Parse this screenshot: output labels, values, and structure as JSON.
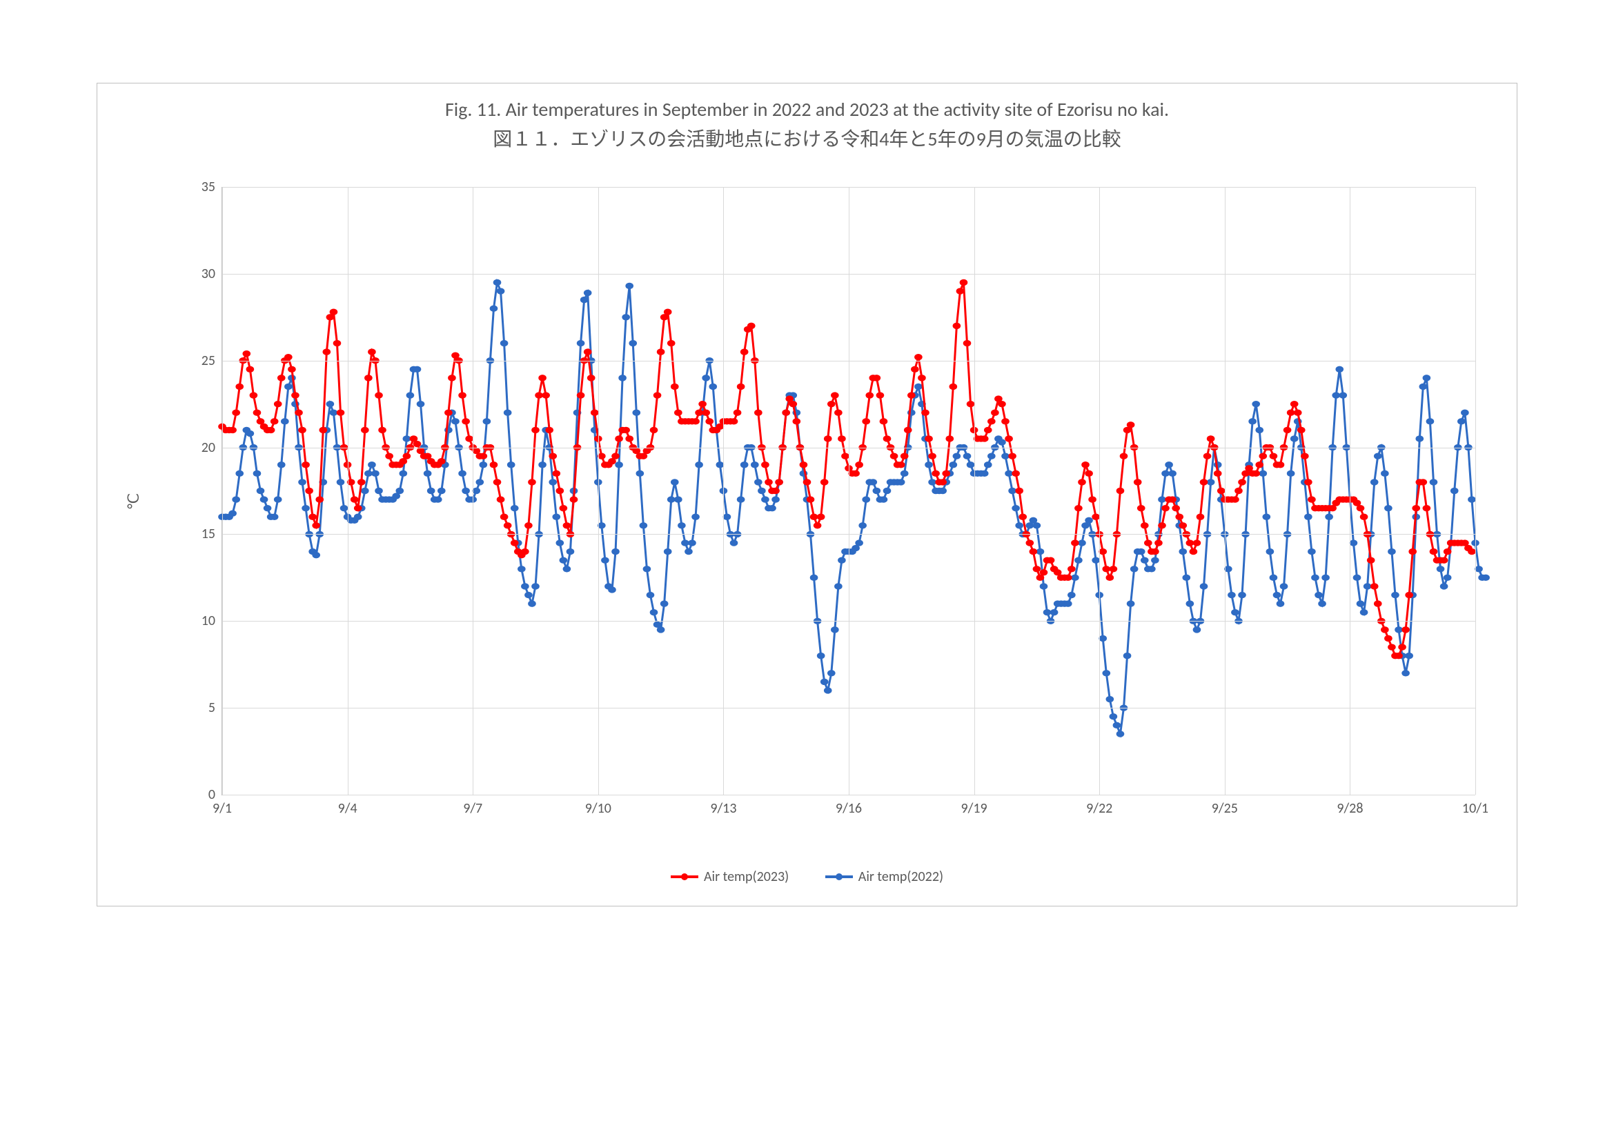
{
  "chart": {
    "type": "line",
    "title_en": "Fig. 11.  Air temperatures in September in 2022 and 2023 at the activity site of Ezorisu no kai.",
    "title_jp": "図１１．エゾリスの会活動地点における令和4年と5年の9月の気温の比較",
    "title_fontsize": 28,
    "title_color": "#595959",
    "ylabel": "℃",
    "label_fontsize": 22,
    "label_color": "#595959",
    "background_color": "#ffffff",
    "border_color": "#bfbfbf",
    "grid_color": "#d9d9d9",
    "tick_font_size": 20,
    "tick_color": "#595959",
    "ylim": [
      0,
      35
    ],
    "ytick_step": 5,
    "xlim": [
      0,
      30
    ],
    "xtick_step": 3,
    "xtick_labels": [
      "9/1",
      "9/4",
      "9/7",
      "9/10",
      "9/13",
      "9/16",
      "9/19",
      "9/22",
      "9/25",
      "9/28",
      "10/1"
    ],
    "marker_radius": 3.2,
    "line_width": 3.0,
    "legend_position": "bottom",
    "series": [
      {
        "name": "Air temp(2023)",
        "color": "#ff0000",
        "x_step_hours": 2,
        "values": [
          21.2,
          21.0,
          21.0,
          21.0,
          22.0,
          23.5,
          25.0,
          25.4,
          24.5,
          23.0,
          22.0,
          21.5,
          21.2,
          21.0,
          21.0,
          21.5,
          22.5,
          24.0,
          25.0,
          25.2,
          24.5,
          23.0,
          22.0,
          21.0,
          19.0,
          17.5,
          16.0,
          15.5,
          17.0,
          21.0,
          25.5,
          27.5,
          27.8,
          26.0,
          22.0,
          20.0,
          19.0,
          18.0,
          17.0,
          16.5,
          18.0,
          21.0,
          24.0,
          25.5,
          25.0,
          23.0,
          21.0,
          20.0,
          19.5,
          19.0,
          19.0,
          19.0,
          19.2,
          19.5,
          20.0,
          20.5,
          20.2,
          19.8,
          19.5,
          19.5,
          19.2,
          19.0,
          19.0,
          19.2,
          20.0,
          22.0,
          24.0,
          25.3,
          25.0,
          23.0,
          21.5,
          20.5,
          20.0,
          19.8,
          19.5,
          19.5,
          20.0,
          20.0,
          19.0,
          18.0,
          17.0,
          16.0,
          15.5,
          15.0,
          14.5,
          14.0,
          13.8,
          14.0,
          15.5,
          18.0,
          21.0,
          23.0,
          24.0,
          23.0,
          21.0,
          19.5,
          18.5,
          17.5,
          16.5,
          15.5,
          15.0,
          17.0,
          20.0,
          23.0,
          25.0,
          25.5,
          24.0,
          22.0,
          20.5,
          19.5,
          19.0,
          19.0,
          19.2,
          19.5,
          20.5,
          21.0,
          21.0,
          20.5,
          20.0,
          19.8,
          19.5,
          19.5,
          19.8,
          20.0,
          21.0,
          23.0,
          25.5,
          27.5,
          27.8,
          26.0,
          23.5,
          22.0,
          21.5,
          21.5,
          21.5,
          21.5,
          21.5,
          22.0,
          22.5,
          22.0,
          21.5,
          21.0,
          21.0,
          21.2,
          21.5,
          21.5,
          21.5,
          21.5,
          22.0,
          23.5,
          25.5,
          26.8,
          27.0,
          25.0,
          22.0,
          20.0,
          19.0,
          18.0,
          17.5,
          17.5,
          18.0,
          20.0,
          22.0,
          22.8,
          22.5,
          21.5,
          20.0,
          19.0,
          18.0,
          17.0,
          16.0,
          15.5,
          16.0,
          18.0,
          20.5,
          22.5,
          23.0,
          22.0,
          20.5,
          19.5,
          18.8,
          18.5,
          18.5,
          19.0,
          20.0,
          21.5,
          23.0,
          24.0,
          24.0,
          23.0,
          21.5,
          20.5,
          20.0,
          19.5,
          19.0,
          19.0,
          19.5,
          21.0,
          23.0,
          24.5,
          25.2,
          24.0,
          22.0,
          20.5,
          19.5,
          18.5,
          18.0,
          18.0,
          18.5,
          20.5,
          23.5,
          27.0,
          29.0,
          29.5,
          26.0,
          22.5,
          21.0,
          20.5,
          20.5,
          20.5,
          21.0,
          21.5,
          22.0,
          22.8,
          22.5,
          21.5,
          20.5,
          19.5,
          18.5,
          17.5,
          16.0,
          15.0,
          14.5,
          14.0,
          13.0,
          12.5,
          12.8,
          13.5,
          13.5,
          13.0,
          12.8,
          12.5,
          12.5,
          12.5,
          13.0,
          14.5,
          16.5,
          18.0,
          19.0,
          18.5,
          17.0,
          16.0,
          15.0,
          14.0,
          13.0,
          12.5,
          13.0,
          15.0,
          17.5,
          19.5,
          21.0,
          21.3,
          20.0,
          18.0,
          16.5,
          15.5,
          14.5,
          14.0,
          14.0,
          14.5,
          15.5,
          16.5,
          17.0,
          17.0,
          16.5,
          16.0,
          15.5,
          15.0,
          14.5,
          14.0,
          14.5,
          16.0,
          18.0,
          19.5,
          20.5,
          20.0,
          18.5,
          17.5,
          17.0,
          17.0,
          17.0,
          17.0,
          17.5,
          18.0,
          18.5,
          18.8,
          18.5,
          18.5,
          19.0,
          19.5,
          20.0,
          20.0,
          19.5,
          19.0,
          19.0,
          20.0,
          21.0,
          22.0,
          22.5,
          22.0,
          21.0,
          19.5,
          18.0,
          17.0,
          16.5,
          16.5,
          16.5,
          16.5,
          16.5,
          16.5,
          16.8,
          17.0,
          17.0,
          17.0,
          17.0,
          17.0,
          16.8,
          16.5,
          16.0,
          15.0,
          13.5,
          12.0,
          11.0,
          10.0,
          9.5,
          9.0,
          8.5,
          8.0,
          8.0,
          8.5,
          9.5,
          11.5,
          14.0,
          16.5,
          18.0,
          18.0,
          16.5,
          15.0,
          14.0,
          13.5,
          13.5,
          13.5,
          14.0,
          14.5,
          14.5,
          14.5,
          14.5,
          14.5,
          14.2,
          14.0
        ]
      },
      {
        "name": "Air temp(2022)",
        "color": "#2e6bc4",
        "x_step_hours": 2,
        "values": [
          16.0,
          16.0,
          16.0,
          16.2,
          17.0,
          18.5,
          20.0,
          21.0,
          20.8,
          20.0,
          18.5,
          17.5,
          17.0,
          16.5,
          16.0,
          16.0,
          17.0,
          19.0,
          21.5,
          23.5,
          24.0,
          22.5,
          20.0,
          18.0,
          16.5,
          15.0,
          14.0,
          13.8,
          15.0,
          18.0,
          21.0,
          22.5,
          22.0,
          20.0,
          18.0,
          16.5,
          16.0,
          15.8,
          15.8,
          16.0,
          16.5,
          17.5,
          18.5,
          19.0,
          18.5,
          17.5,
          17.0,
          17.0,
          17.0,
          17.0,
          17.2,
          17.5,
          18.5,
          20.5,
          23.0,
          24.5,
          24.5,
          22.5,
          20.0,
          18.5,
          17.5,
          17.0,
          17.0,
          17.5,
          19.0,
          21.0,
          22.0,
          21.5,
          20.0,
          18.5,
          17.5,
          17.0,
          17.0,
          17.5,
          18.0,
          19.0,
          21.5,
          25.0,
          28.0,
          29.5,
          29.0,
          26.0,
          22.0,
          19.0,
          16.5,
          14.5,
          13.0,
          12.0,
          11.5,
          11.0,
          12.0,
          15.0,
          19.0,
          21.0,
          20.0,
          18.0,
          16.0,
          14.5,
          13.5,
          13.0,
          14.0,
          17.5,
          22.0,
          26.0,
          28.5,
          28.9,
          25.0,
          21.0,
          18.0,
          15.5,
          13.5,
          12.0,
          11.8,
          14.0,
          19.0,
          24.0,
          27.5,
          29.3,
          26.0,
          22.0,
          18.5,
          15.5,
          13.0,
          11.5,
          10.5,
          9.8,
          9.5,
          11.0,
          14.0,
          17.0,
          18.0,
          17.0,
          15.5,
          14.5,
          14.0,
          14.5,
          16.0,
          19.0,
          22.0,
          24.0,
          25.0,
          23.5,
          21.0,
          19.0,
          17.5,
          16.0,
          15.0,
          14.5,
          15.0,
          17.0,
          19.0,
          20.0,
          20.0,
          19.0,
          18.0,
          17.5,
          17.0,
          16.5,
          16.5,
          17.0,
          18.0,
          20.0,
          22.0,
          23.0,
          23.0,
          22.0,
          20.0,
          18.5,
          17.0,
          15.0,
          12.5,
          10.0,
          8.0,
          6.5,
          6.0,
          7.0,
          9.5,
          12.0,
          13.5,
          14.0,
          14.0,
          14.0,
          14.2,
          14.5,
          15.5,
          17.0,
          18.0,
          18.0,
          17.5,
          17.0,
          17.0,
          17.5,
          18.0,
          18.0,
          18.0,
          18.0,
          18.5,
          20.0,
          22.0,
          23.0,
          23.5,
          22.5,
          20.5,
          19.0,
          18.0,
          17.5,
          17.5,
          17.5,
          18.0,
          18.5,
          19.0,
          19.5,
          20.0,
          20.0,
          19.5,
          19.0,
          18.5,
          18.5,
          18.5,
          18.5,
          19.0,
          19.5,
          20.0,
          20.5,
          20.3,
          19.5,
          18.5,
          17.5,
          16.5,
          15.5,
          15.0,
          15.0,
          15.5,
          15.8,
          15.5,
          14.0,
          12.0,
          10.5,
          10.0,
          10.5,
          11.0,
          11.0,
          11.0,
          11.0,
          11.5,
          12.5,
          13.5,
          14.5,
          15.5,
          15.8,
          15.0,
          13.5,
          11.5,
          9.0,
          7.0,
          5.5,
          4.5,
          4.0,
          3.5,
          5.0,
          8.0,
          11.0,
          13.0,
          14.0,
          14.0,
          13.5,
          13.0,
          13.0,
          13.5,
          15.0,
          17.0,
          18.5,
          19.0,
          18.5,
          17.0,
          15.5,
          14.0,
          12.5,
          11.0,
          10.0,
          9.5,
          10.0,
          12.0,
          15.0,
          18.0,
          20.0,
          19.0,
          17.0,
          15.0,
          13.0,
          11.5,
          10.5,
          10.0,
          11.5,
          15.0,
          19.0,
          21.5,
          22.5,
          21.0,
          18.5,
          16.0,
          14.0,
          12.5,
          11.5,
          11.0,
          12.0,
          15.0,
          18.5,
          20.5,
          21.5,
          20.0,
          18.0,
          16.0,
          14.0,
          12.5,
          11.5,
          11.0,
          12.5,
          16.0,
          20.0,
          23.0,
          24.5,
          23.0,
          20.0,
          17.0,
          14.5,
          12.5,
          11.0,
          10.5,
          12.0,
          15.0,
          18.0,
          19.5,
          20.0,
          18.5,
          16.5,
          14.0,
          11.5,
          9.5,
          8.0,
          7.0,
          8.0,
          11.5,
          16.0,
          20.5,
          23.5,
          24.0,
          21.5,
          18.0,
          15.0,
          13.0,
          12.0,
          12.5,
          14.5,
          17.5,
          20.0,
          21.5,
          22.0,
          20.0,
          17.0,
          14.5,
          13.0,
          12.5,
          12.5
        ]
      }
    ]
  },
  "legend": {
    "items": [
      {
        "label": "Air temp(2023)",
        "color": "#ff0000"
      },
      {
        "label": "Air temp(2022)",
        "color": "#2e6bc4"
      }
    ]
  }
}
